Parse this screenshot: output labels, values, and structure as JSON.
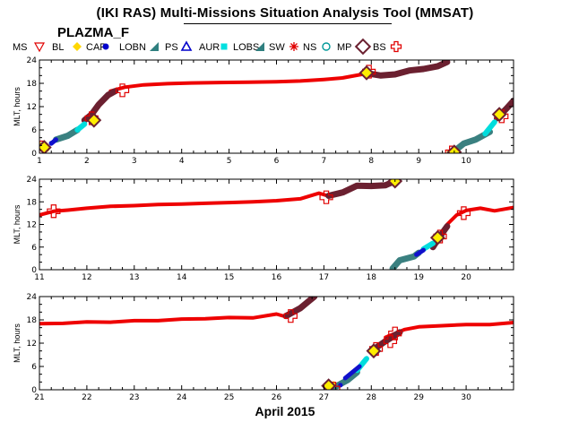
{
  "page": {
    "title": "(IKI RAS) Multi-Missions Situation Analysis Tool (MMSAT)",
    "mission": "PLAZMA_F",
    "x_caption": "April 2015"
  },
  "legend": {
    "title": "MS",
    "items": [
      {
        "label": "BL",
        "symbol": "triangle-down-open",
        "color": "#e00000"
      },
      {
        "label": "CAP",
        "symbol": "diamond-filled",
        "color": "#ffd700"
      },
      {
        "label": "LOBN",
        "symbol": "circle-filled",
        "color": "#0000cc"
      },
      {
        "label": "PS",
        "symbol": "triangle-filled",
        "color": "#2f7f7f"
      },
      {
        "label": "AUR",
        "symbol": "triangle-open",
        "color": "#0000cc"
      },
      {
        "label": "LOBS",
        "symbol": "square-filled",
        "color": "#00e0e0"
      },
      {
        "label": "SW",
        "symbol": "triangle-filled",
        "color": "#2f7f7f"
      },
      {
        "label": "NS",
        "symbol": "star",
        "color": "#e00000"
      },
      {
        "label": "MP",
        "symbol": "circle-open",
        "color": "#009999"
      },
      {
        "label": "BS",
        "symbol": "diamond-open",
        "color": "#6b2030"
      },
      {
        "label": "",
        "symbol": "cross-open",
        "color": "#e00000"
      }
    ]
  },
  "colors": {
    "ns": "#ee0000",
    "sw": "#6b2030",
    "ps": "#3a8080",
    "lobs": "#00dddd",
    "lobn": "#1010cc",
    "cap": "#ffee00",
    "bs_outline": "#6b2030",
    "bs_fill": "#ffee00",
    "cross": "#e00000"
  },
  "chart_data": [
    {
      "type": "line",
      "ylabel": "MLT, hours",
      "xlim": [
        1,
        11
      ],
      "ylim": [
        0,
        24
      ],
      "xticks": [
        "1",
        "2",
        "3",
        "4",
        "5",
        "6",
        "7",
        "8",
        "9",
        "10"
      ],
      "yticks": [
        "0",
        "6",
        "12",
        "18",
        "24"
      ],
      "series": [
        {
          "name": "NS",
          "segments": [
            [
              [
                2.5,
                16
              ],
              [
                2.8,
                17
              ],
              [
                3.2,
                17.6
              ],
              [
                3.7,
                17.9
              ],
              [
                4.2,
                18.1
              ],
              [
                4.8,
                18.2
              ],
              [
                5.4,
                18.3
              ],
              [
                6.0,
                18.4
              ],
              [
                6.5,
                18.6
              ],
              [
                7.0,
                19.0
              ],
              [
                7.4,
                19.4
              ],
              [
                7.8,
                20.3
              ]
            ]
          ]
        },
        {
          "name": "SW",
          "segments": [
            [
              [
                1.95,
                8.5
              ],
              [
                2.1,
                10
              ],
              [
                2.25,
                12.5
              ],
              [
                2.45,
                15
              ],
              [
                2.6,
                16
              ]
            ],
            [
              [
                7.9,
                20.6
              ],
              [
                8.2,
                20.0
              ],
              [
                8.5,
                20.3
              ],
              [
                8.8,
                21.3
              ],
              [
                9.1,
                21.7
              ],
              [
                9.4,
                22.4
              ],
              [
                9.6,
                23.5
              ]
            ],
            [
              [
                10.65,
                9
              ],
              [
                10.85,
                11.5
              ],
              [
                11.0,
                13.5
              ]
            ]
          ]
        },
        {
          "name": "PS",
          "segments": [
            [
              [
                1.35,
                3.5
              ],
              [
                1.6,
                4.5
              ],
              [
                1.8,
                6
              ]
            ],
            [
              [
                9.75,
                0.5
              ],
              [
                9.95,
                2.5
              ],
              [
                10.2,
                3.5
              ],
              [
                10.5,
                5.5
              ]
            ]
          ]
        },
        {
          "name": "LOBS",
          "segments": [
            [
              [
                1.8,
                6
              ],
              [
                1.95,
                7.5
              ]
            ],
            [
              [
                10.4,
                5
              ],
              [
                10.6,
                8
              ]
            ]
          ]
        },
        {
          "name": "LOBN",
          "segments": [
            [
              [
                1.25,
                2.5
              ],
              [
                1.35,
                3.5
              ]
            ]
          ]
        },
        {
          "name": "CAP",
          "segments": [
            [
              [
                1.0,
                2.2
              ],
              [
                1.15,
                1.0
              ]
            ],
            [
              [
                9.65,
                0.3
              ],
              [
                9.75,
                0.5
              ]
            ]
          ]
        }
      ],
      "markers": {
        "BS": [
          [
            1.1,
            1.5
          ],
          [
            2.15,
            8.5
          ],
          [
            7.9,
            20.7
          ],
          [
            9.75,
            0.3
          ],
          [
            10.7,
            10
          ]
        ],
        "cross": [
          [
            1.05,
            1.5
          ],
          [
            2.1,
            9
          ],
          [
            2.75,
            16.2
          ],
          [
            7.95,
            21
          ],
          [
            9.7,
            0.2
          ],
          [
            10.75,
            9.5
          ]
        ],
        "lobn_dots": [
          [
            1.25,
            2.6
          ]
        ]
      }
    },
    {
      "type": "line",
      "ylabel": "MLT, hours",
      "xlim": [
        11,
        21
      ],
      "ylim": [
        0,
        24
      ],
      "xticks": [
        "11",
        "12",
        "13",
        "14",
        "15",
        "16",
        "17",
        "18",
        "19",
        "20"
      ],
      "yticks": [
        "0",
        "6",
        "12",
        "18",
        "24"
      ],
      "series": [
        {
          "name": "NS",
          "segments": [
            [
              [
                11.0,
                14.5
              ],
              [
                11.3,
                15.5
              ],
              [
                11.6,
                15.8
              ],
              [
                12.0,
                16.3
              ],
              [
                12.5,
                16.8
              ],
              [
                13.0,
                17.0
              ],
              [
                13.5,
                17.3
              ],
              [
                14.0,
                17.4
              ],
              [
                14.5,
                17.6
              ],
              [
                15.0,
                17.8
              ],
              [
                15.5,
                18.0
              ],
              [
                16.0,
                18.3
              ],
              [
                16.5,
                18.8
              ],
              [
                16.9,
                20.3
              ],
              [
                17.1,
                19.5
              ]
            ],
            [
              [
                19.6,
                12
              ],
              [
                19.8,
                14.5
              ],
              [
                20.0,
                15.7
              ],
              [
                20.3,
                16.3
              ],
              [
                20.6,
                15.6
              ],
              [
                21.0,
                16.5
              ]
            ]
          ]
        },
        {
          "name": "SW",
          "segments": [
            [
              [
                17.1,
                19.6
              ],
              [
                17.4,
                20.5
              ],
              [
                17.7,
                22.3
              ],
              [
                18.0,
                22.2
              ],
              [
                18.3,
                22.4
              ],
              [
                18.5,
                23.5
              ]
            ],
            [
              [
                19.3,
                6
              ],
              [
                19.4,
                8
              ],
              [
                19.6,
                11.5
              ]
            ]
          ]
        },
        {
          "name": "PS",
          "segments": [
            [
              [
                18.45,
                0.3
              ],
              [
                18.6,
                2.5
              ],
              [
                18.9,
                3.5
              ],
              [
                19.0,
                4.5
              ]
            ]
          ]
        },
        {
          "name": "LOBS",
          "segments": [
            [
              [
                19.1,
                5.5
              ],
              [
                19.3,
                7
              ]
            ]
          ]
        },
        {
          "name": "LOBN",
          "segments": [
            [
              [
                18.95,
                4
              ],
              [
                19.1,
                5.2
              ]
            ]
          ]
        },
        {
          "name": "CAP",
          "segments": [
            [
              [
                18.45,
                23.2
              ],
              [
                18.55,
                24.0
              ]
            ]
          ]
        }
      ],
      "markers": {
        "BS": [
          [
            18.5,
            23.5
          ],
          [
            19.4,
            8.5
          ]
        ],
        "cross": [
          [
            11.3,
            15.5
          ],
          [
            17.05,
            19.2
          ],
          [
            19.45,
            8.8
          ],
          [
            19.95,
            15
          ]
        ],
        "lobn_dots": []
      }
    },
    {
      "type": "line",
      "ylabel": "MLT, hours",
      "xlim": [
        21,
        31
      ],
      "ylim": [
        0,
        24
      ],
      "xticks": [
        "21",
        "22",
        "23",
        "24",
        "25",
        "26",
        "27",
        "28",
        "29",
        "30"
      ],
      "yticks": [
        "0",
        "6",
        "12",
        "18",
        "24"
      ],
      "series": [
        {
          "name": "NS",
          "segments": [
            [
              [
                21.0,
                17.0
              ],
              [
                21.5,
                17.1
              ],
              [
                22.0,
                17.5
              ],
              [
                22.5,
                17.4
              ],
              [
                23.0,
                17.8
              ],
              [
                23.5,
                17.8
              ],
              [
                24.0,
                18.2
              ],
              [
                24.5,
                18.3
              ],
              [
                25.0,
                18.6
              ],
              [
                25.5,
                18.5
              ],
              [
                26.0,
                19.5
              ],
              [
                26.2,
                18.8
              ]
            ],
            [
              [
                28.3,
                13.5
              ],
              [
                28.7,
                15.5
              ],
              [
                29.0,
                16.2
              ],
              [
                29.5,
                16.5
              ],
              [
                30.0,
                16.8
              ],
              [
                30.5,
                16.8
              ],
              [
                31.0,
                17.3
              ]
            ]
          ]
        },
        {
          "name": "SW",
          "segments": [
            [
              [
                26.2,
                19
              ],
              [
                26.5,
                21
              ],
              [
                26.7,
                23
              ],
              [
                26.8,
                24
              ]
            ],
            [
              [
                28.0,
                10
              ],
              [
                28.3,
                12.5
              ],
              [
                28.6,
                14.8
              ]
            ]
          ]
        },
        {
          "name": "PS",
          "segments": [
            [
              [
                27.2,
                0.5
              ],
              [
                27.5,
                2.5
              ],
              [
                27.7,
                4.5
              ]
            ]
          ]
        },
        {
          "name": "LOBS",
          "segments": [
            [
              [
                27.7,
                5
              ],
              [
                27.9,
                8
              ]
            ]
          ]
        },
        {
          "name": "LOBN",
          "segments": [
            [
              [
                27.45,
                3
              ],
              [
                27.75,
                6
              ]
            ]
          ]
        },
        {
          "name": "CAP",
          "segments": [
            [
              [
                27.1,
                0.5
              ],
              [
                27.2,
                1.5
              ]
            ]
          ]
        }
      ],
      "markers": {
        "BS": [
          [
            27.1,
            1
          ],
          [
            28.05,
            10
          ]
        ],
        "cross": [
          [
            26.3,
            19
          ],
          [
            27.2,
            0.3
          ],
          [
            28.1,
            10.5
          ],
          [
            28.4,
            12.5
          ],
          [
            28.5,
            14.5
          ]
        ],
        "lobn_dots": [
          [
            27.35,
            1.2
          ]
        ]
      }
    }
  ]
}
